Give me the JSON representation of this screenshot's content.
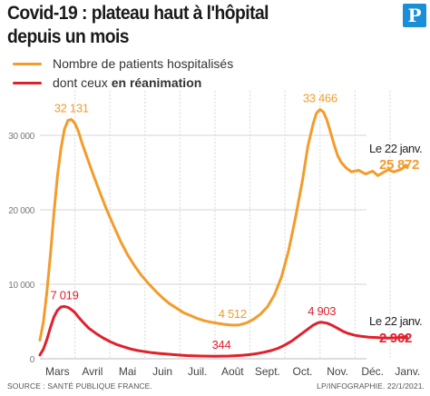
{
  "header": {
    "title_line1": "Covid-19 : plateau haut à l'hôpital",
    "title_line2": "depuis un mois",
    "logo_letter": "P"
  },
  "legend": {
    "hosp_label": "Nombre de patients hospitalisés",
    "icu_label_prefix": "dont ceux",
    "icu_label_bold": "en réanimation"
  },
  "colors": {
    "hosp": "#f39c2b",
    "icu": "#e0212c",
    "grid": "#d6d6d6",
    "axis_text": "#777777"
  },
  "chart_data": {
    "type": "line",
    "title": "Covid-19 : plateau haut à l'hôpital depuis un mois",
    "xlabel": "",
    "ylabel": "",
    "ylim": [
      0,
      35000
    ],
    "yticks": [
      0,
      10000,
      20000,
      30000
    ],
    "ytick_labels": [
      "0",
      "10 000",
      "20 000",
      "30 000"
    ],
    "grid": true,
    "legend_position": "top-left",
    "months": [
      "Mars",
      "Avril",
      "Mai",
      "Juin",
      "Juil.",
      "Août",
      "Sept.",
      "Oct.",
      "Nov.",
      "Déc.",
      "Janv."
    ],
    "series": [
      {
        "name": "Nombre de patients hospitalisés",
        "color": "#f39c2b",
        "points": [
          [
            0.0,
            2500
          ],
          [
            0.1,
            5000
          ],
          [
            0.2,
            9000
          ],
          [
            0.3,
            14000
          ],
          [
            0.4,
            19500
          ],
          [
            0.5,
            24500
          ],
          [
            0.6,
            28200
          ],
          [
            0.7,
            30800
          ],
          [
            0.8,
            32000
          ],
          [
            0.9,
            32131
          ],
          [
            1.0,
            31600
          ],
          [
            1.1,
            30500
          ],
          [
            1.2,
            29000
          ],
          [
            1.35,
            27000
          ],
          [
            1.5,
            25000
          ],
          [
            1.7,
            22500
          ],
          [
            1.9,
            20100
          ],
          [
            2.1,
            17900
          ],
          [
            2.3,
            15800
          ],
          [
            2.5,
            14000
          ],
          [
            2.7,
            12500
          ],
          [
            2.9,
            11200
          ],
          [
            3.1,
            10100
          ],
          [
            3.3,
            9100
          ],
          [
            3.5,
            8200
          ],
          [
            3.7,
            7400
          ],
          [
            3.9,
            6800
          ],
          [
            4.1,
            6200
          ],
          [
            4.3,
            5800
          ],
          [
            4.5,
            5400
          ],
          [
            4.7,
            5100
          ],
          [
            4.9,
            4900
          ],
          [
            5.1,
            4750
          ],
          [
            5.3,
            4600
          ],
          [
            5.5,
            4512
          ],
          [
            5.7,
            4550
          ],
          [
            5.9,
            4800
          ],
          [
            6.1,
            5300
          ],
          [
            6.3,
            6000
          ],
          [
            6.5,
            7000
          ],
          [
            6.7,
            8600
          ],
          [
            6.9,
            11000
          ],
          [
            7.1,
            14500
          ],
          [
            7.3,
            19000
          ],
          [
            7.5,
            24000
          ],
          [
            7.65,
            28500
          ],
          [
            7.8,
            31500
          ],
          [
            7.9,
            33000
          ],
          [
            8.0,
            33466
          ],
          [
            8.1,
            33100
          ],
          [
            8.2,
            32000
          ],
          [
            8.3,
            30400
          ],
          [
            8.4,
            28800
          ],
          [
            8.5,
            27300
          ],
          [
            8.6,
            26400
          ],
          [
            8.75,
            25600
          ],
          [
            8.9,
            25100
          ],
          [
            9.1,
            25300
          ],
          [
            9.3,
            24800
          ],
          [
            9.5,
            25200
          ],
          [
            9.65,
            24600
          ],
          [
            9.8,
            25000
          ],
          [
            9.95,
            25400
          ],
          [
            10.1,
            25100
          ],
          [
            10.3,
            25400
          ],
          [
            10.45,
            25872
          ]
        ],
        "peak_labels": [
          {
            "x": 0.9,
            "y": 32131,
            "text": "32 131"
          },
          {
            "x": 5.5,
            "y": 4512,
            "text": "4 512"
          },
          {
            "x": 8.0,
            "y": 33466,
            "text": "33 466"
          }
        ],
        "end_date": "Le 22 janv.",
        "end_value": "25 872"
      },
      {
        "name": "dont ceux en réanimation",
        "color": "#e0212c",
        "points": [
          [
            0.0,
            500
          ],
          [
            0.1,
            1300
          ],
          [
            0.2,
            2600
          ],
          [
            0.3,
            4200
          ],
          [
            0.4,
            5600
          ],
          [
            0.5,
            6500
          ],
          [
            0.6,
            6950
          ],
          [
            0.7,
            7019
          ],
          [
            0.8,
            6900
          ],
          [
            0.9,
            6600
          ],
          [
            1.0,
            6200
          ],
          [
            1.1,
            5600
          ],
          [
            1.25,
            4800
          ],
          [
            1.4,
            4100
          ],
          [
            1.6,
            3400
          ],
          [
            1.8,
            2800
          ],
          [
            2.0,
            2300
          ],
          [
            2.2,
            1900
          ],
          [
            2.4,
            1600
          ],
          [
            2.6,
            1300
          ],
          [
            2.8,
            1100
          ],
          [
            3.0,
            950
          ],
          [
            3.2,
            820
          ],
          [
            3.4,
            720
          ],
          [
            3.6,
            630
          ],
          [
            3.8,
            560
          ],
          [
            4.0,
            490
          ],
          [
            4.2,
            430
          ],
          [
            4.4,
            390
          ],
          [
            4.6,
            365
          ],
          [
            4.8,
            350
          ],
          [
            5.0,
            344
          ],
          [
            5.2,
            348
          ],
          [
            5.4,
            370
          ],
          [
            5.6,
            410
          ],
          [
            5.8,
            470
          ],
          [
            6.0,
            560
          ],
          [
            6.2,
            700
          ],
          [
            6.4,
            880
          ],
          [
            6.6,
            1100
          ],
          [
            6.8,
            1400
          ],
          [
            7.0,
            1850
          ],
          [
            7.2,
            2400
          ],
          [
            7.4,
            3100
          ],
          [
            7.6,
            3800
          ],
          [
            7.8,
            4500
          ],
          [
            7.95,
            4850
          ],
          [
            8.05,
            4903
          ],
          [
            8.2,
            4780
          ],
          [
            8.35,
            4480
          ],
          [
            8.5,
            4100
          ],
          [
            8.65,
            3700
          ],
          [
            8.8,
            3400
          ],
          [
            9.0,
            3150
          ],
          [
            9.2,
            3000
          ],
          [
            9.4,
            2900
          ],
          [
            9.6,
            2850
          ],
          [
            9.8,
            2800
          ],
          [
            10.0,
            2780
          ],
          [
            10.2,
            2820
          ],
          [
            10.45,
            2902
          ]
        ],
        "peak_labels": [
          {
            "x": 0.7,
            "y": 7019,
            "text": "7 019"
          },
          {
            "x": 5.0,
            "y": 344,
            "text": "344"
          },
          {
            "x": 8.05,
            "y": 4903,
            "text": "4 903"
          }
        ],
        "end_date": "Le 22 janv.",
        "end_value": "2 902"
      }
    ]
  },
  "footer": {
    "source": "SOURCE : SANTÉ PUBLIQUE FRANCE.",
    "credit": "LP/INFOGRAPHIE.  22/1/2021."
  }
}
